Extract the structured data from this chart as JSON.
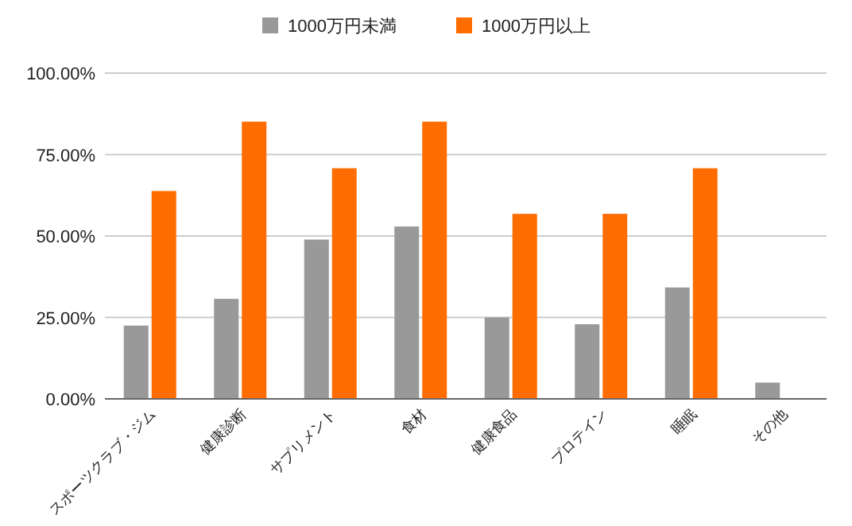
{
  "chart_data": {
    "type": "bar",
    "categories": [
      "スポーツクラブ・ジム",
      "健康診断",
      "サプリメント",
      "食材",
      "健康食品",
      "プロテイン",
      "睡眠",
      "その他"
    ],
    "series": [
      {
        "name": "1000万円未満",
        "color": "#999999",
        "values": [
          22.5,
          30.7,
          48.9,
          52.9,
          25.0,
          22.9,
          34.2,
          5.0
        ]
      },
      {
        "name": "1000万円以上",
        "color": "#ff6d01",
        "values": [
          63.8,
          85.1,
          70.8,
          85.1,
          56.8,
          56.8,
          70.8,
          0
        ]
      }
    ],
    "ylim": [
      0,
      100
    ],
    "yticks": [
      {
        "value": 0,
        "label": "0.00%"
      },
      {
        "value": 25,
        "label": "25.00%"
      },
      {
        "value": 50,
        "label": "50.00%"
      },
      {
        "value": 75,
        "label": "75.00%"
      },
      {
        "value": 100,
        "label": "100.00%"
      }
    ],
    "grid": "y",
    "legend": "top"
  }
}
